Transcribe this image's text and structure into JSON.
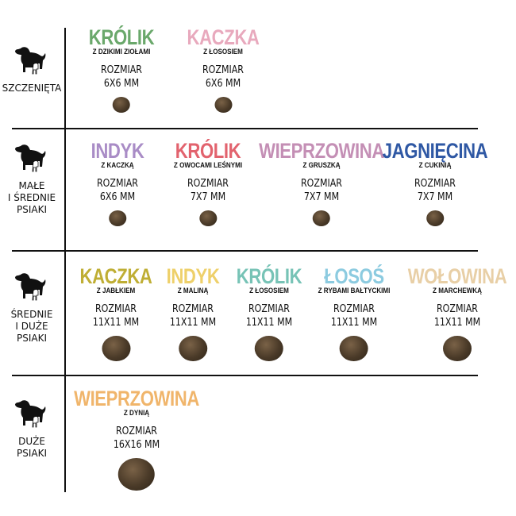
{
  "categories": [
    {
      "label": "SZCZENIĘTA",
      "icon": "dog-with-cat-icon",
      "items": [
        {
          "title": "KRÓLIK",
          "subtitle": "Z DZIKIMI ZIOŁAMI",
          "size_label": "ROZMIAR",
          "size": "6X6 MM",
          "color": "#6aa86b"
        },
        {
          "title": "KACZKA",
          "subtitle": "Z ŁOSOSIEM",
          "size_label": "ROZMIAR",
          "size": "6X6 MM",
          "color": "#e8a9bd"
        }
      ]
    },
    {
      "label": "MAŁE\nI ŚREDNIE\nPSIAKI",
      "icon": "dog-with-cat-icon",
      "items": [
        {
          "title": "INDYK",
          "subtitle": "Z KACZKĄ",
          "size_label": "ROZMIAR",
          "size": "6X6 MM",
          "color": "#a98cc6"
        },
        {
          "title": "KRÓLIK",
          "subtitle": "Z OWOCAMI LEŚNYMI",
          "size_label": "ROZMIAR",
          "size": "7X7 MM",
          "color": "#e2636e"
        },
        {
          "title": "WIEPRZOWINA",
          "subtitle": "Z GRUSZKĄ",
          "size_label": "ROZMIAR",
          "size": "7X7 MM",
          "color": "#c48fb5"
        },
        {
          "title": "JAGNIĘCINA",
          "subtitle": "Z CUKINIĄ",
          "size_label": "ROZMIAR",
          "size": "7X7 MM",
          "color": "#2f58a4"
        }
      ]
    },
    {
      "label": "ŚREDNIE\nI DUŻE\nPSIAKI",
      "icon": "dog-with-cat-icon",
      "items": [
        {
          "title": "KACZKA",
          "subtitle": "Z JABŁKIEM",
          "size_label": "ROZMIAR",
          "size": "11X11 MM",
          "color": "#bfae34"
        },
        {
          "title": "INDYK",
          "subtitle": "Z MALINĄ",
          "size_label": "ROZMIAR",
          "size": "11X11 MM",
          "color": "#eed06a"
        },
        {
          "title": "KRÓLIK",
          "subtitle": "Z ŁOSOSIEM",
          "size_label": "ROZMIAR",
          "size": "11X11 MM",
          "color": "#77c3b6"
        },
        {
          "title": "ŁOSOŚ",
          "subtitle": "Z RYBAMI BAŁTYCKIMI",
          "size_label": "ROZMIAR",
          "size": "11X11 MM",
          "color": "#8ccbe0"
        },
        {
          "title": "WOŁOWINA",
          "subtitle": "Z MARCHEWKĄ",
          "size_label": "ROZMIAR",
          "size": "11X11 MM",
          "color": "#e8cfa6"
        }
      ]
    },
    {
      "label": "DUŻE\nPSIAKI",
      "icon": "dog-with-cat-icon",
      "items": [
        {
          "title": "WIEPRZOWINA",
          "subtitle": "Z DYNIĄ",
          "size_label": "ROZMIAR",
          "size": "16X16 MM",
          "color": "#f0b56b"
        }
      ]
    }
  ]
}
